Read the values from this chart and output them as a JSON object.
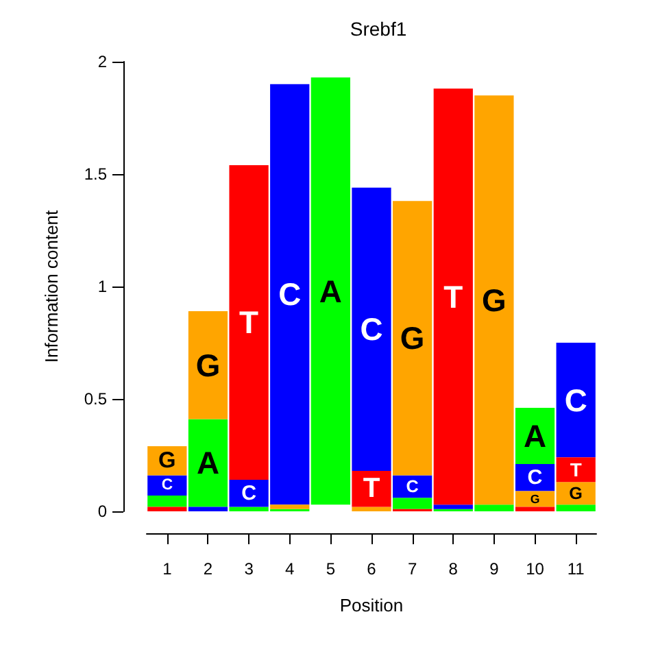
{
  "chart_data": {
    "type": "bar",
    "title": "Srebf1",
    "xlabel": "Position",
    "ylabel": "Information content",
    "categories": [
      "1",
      "2",
      "3",
      "4",
      "5",
      "6",
      "7",
      "8",
      "9",
      "10",
      "11"
    ],
    "ylim": [
      0,
      2
    ],
    "yticks": [
      0,
      0.5,
      1,
      1.5,
      2
    ],
    "series": [
      {
        "name": "A",
        "color": "#00ff00",
        "values": [
          0.05,
          0.39,
          0.02,
          0.01,
          1.9,
          null,
          0.05,
          0.01,
          0.03,
          0.25,
          0.03
        ],
        "base": [
          0.02,
          0.02,
          0,
          0,
          0.03,
          null,
          0.01,
          0,
          0,
          0.21,
          0
        ]
      },
      {
        "name": "C",
        "color": "#0000ff",
        "values": [
          0.09,
          0.02,
          0.12,
          1.87,
          null,
          1.26,
          0.1,
          0.02,
          null,
          0.12,
          0.51
        ],
        "base": [
          0.07,
          0,
          0.02,
          0.03,
          null,
          0.18,
          0.06,
          0.01,
          null,
          0.09,
          0.24
        ]
      },
      {
        "name": "G",
        "color": "#ffa500",
        "values": [
          0.13,
          0.48,
          null,
          0.02,
          null,
          0.02,
          1.22,
          null,
          1.82,
          0.07,
          0.1
        ],
        "base": [
          0.16,
          0.41,
          null,
          0.01,
          null,
          0,
          0.16,
          null,
          0.03,
          0.02,
          0.03
        ]
      },
      {
        "name": "T",
        "color": "#ff0000",
        "values": [
          0.02,
          null,
          1.4,
          null,
          null,
          0.16,
          0.01,
          1.85,
          null,
          0.02,
          0.11
        ],
        "base": [
          0,
          null,
          0.14,
          null,
          null,
          0.02,
          0,
          0.03,
          null,
          0,
          0.13
        ]
      }
    ]
  }
}
